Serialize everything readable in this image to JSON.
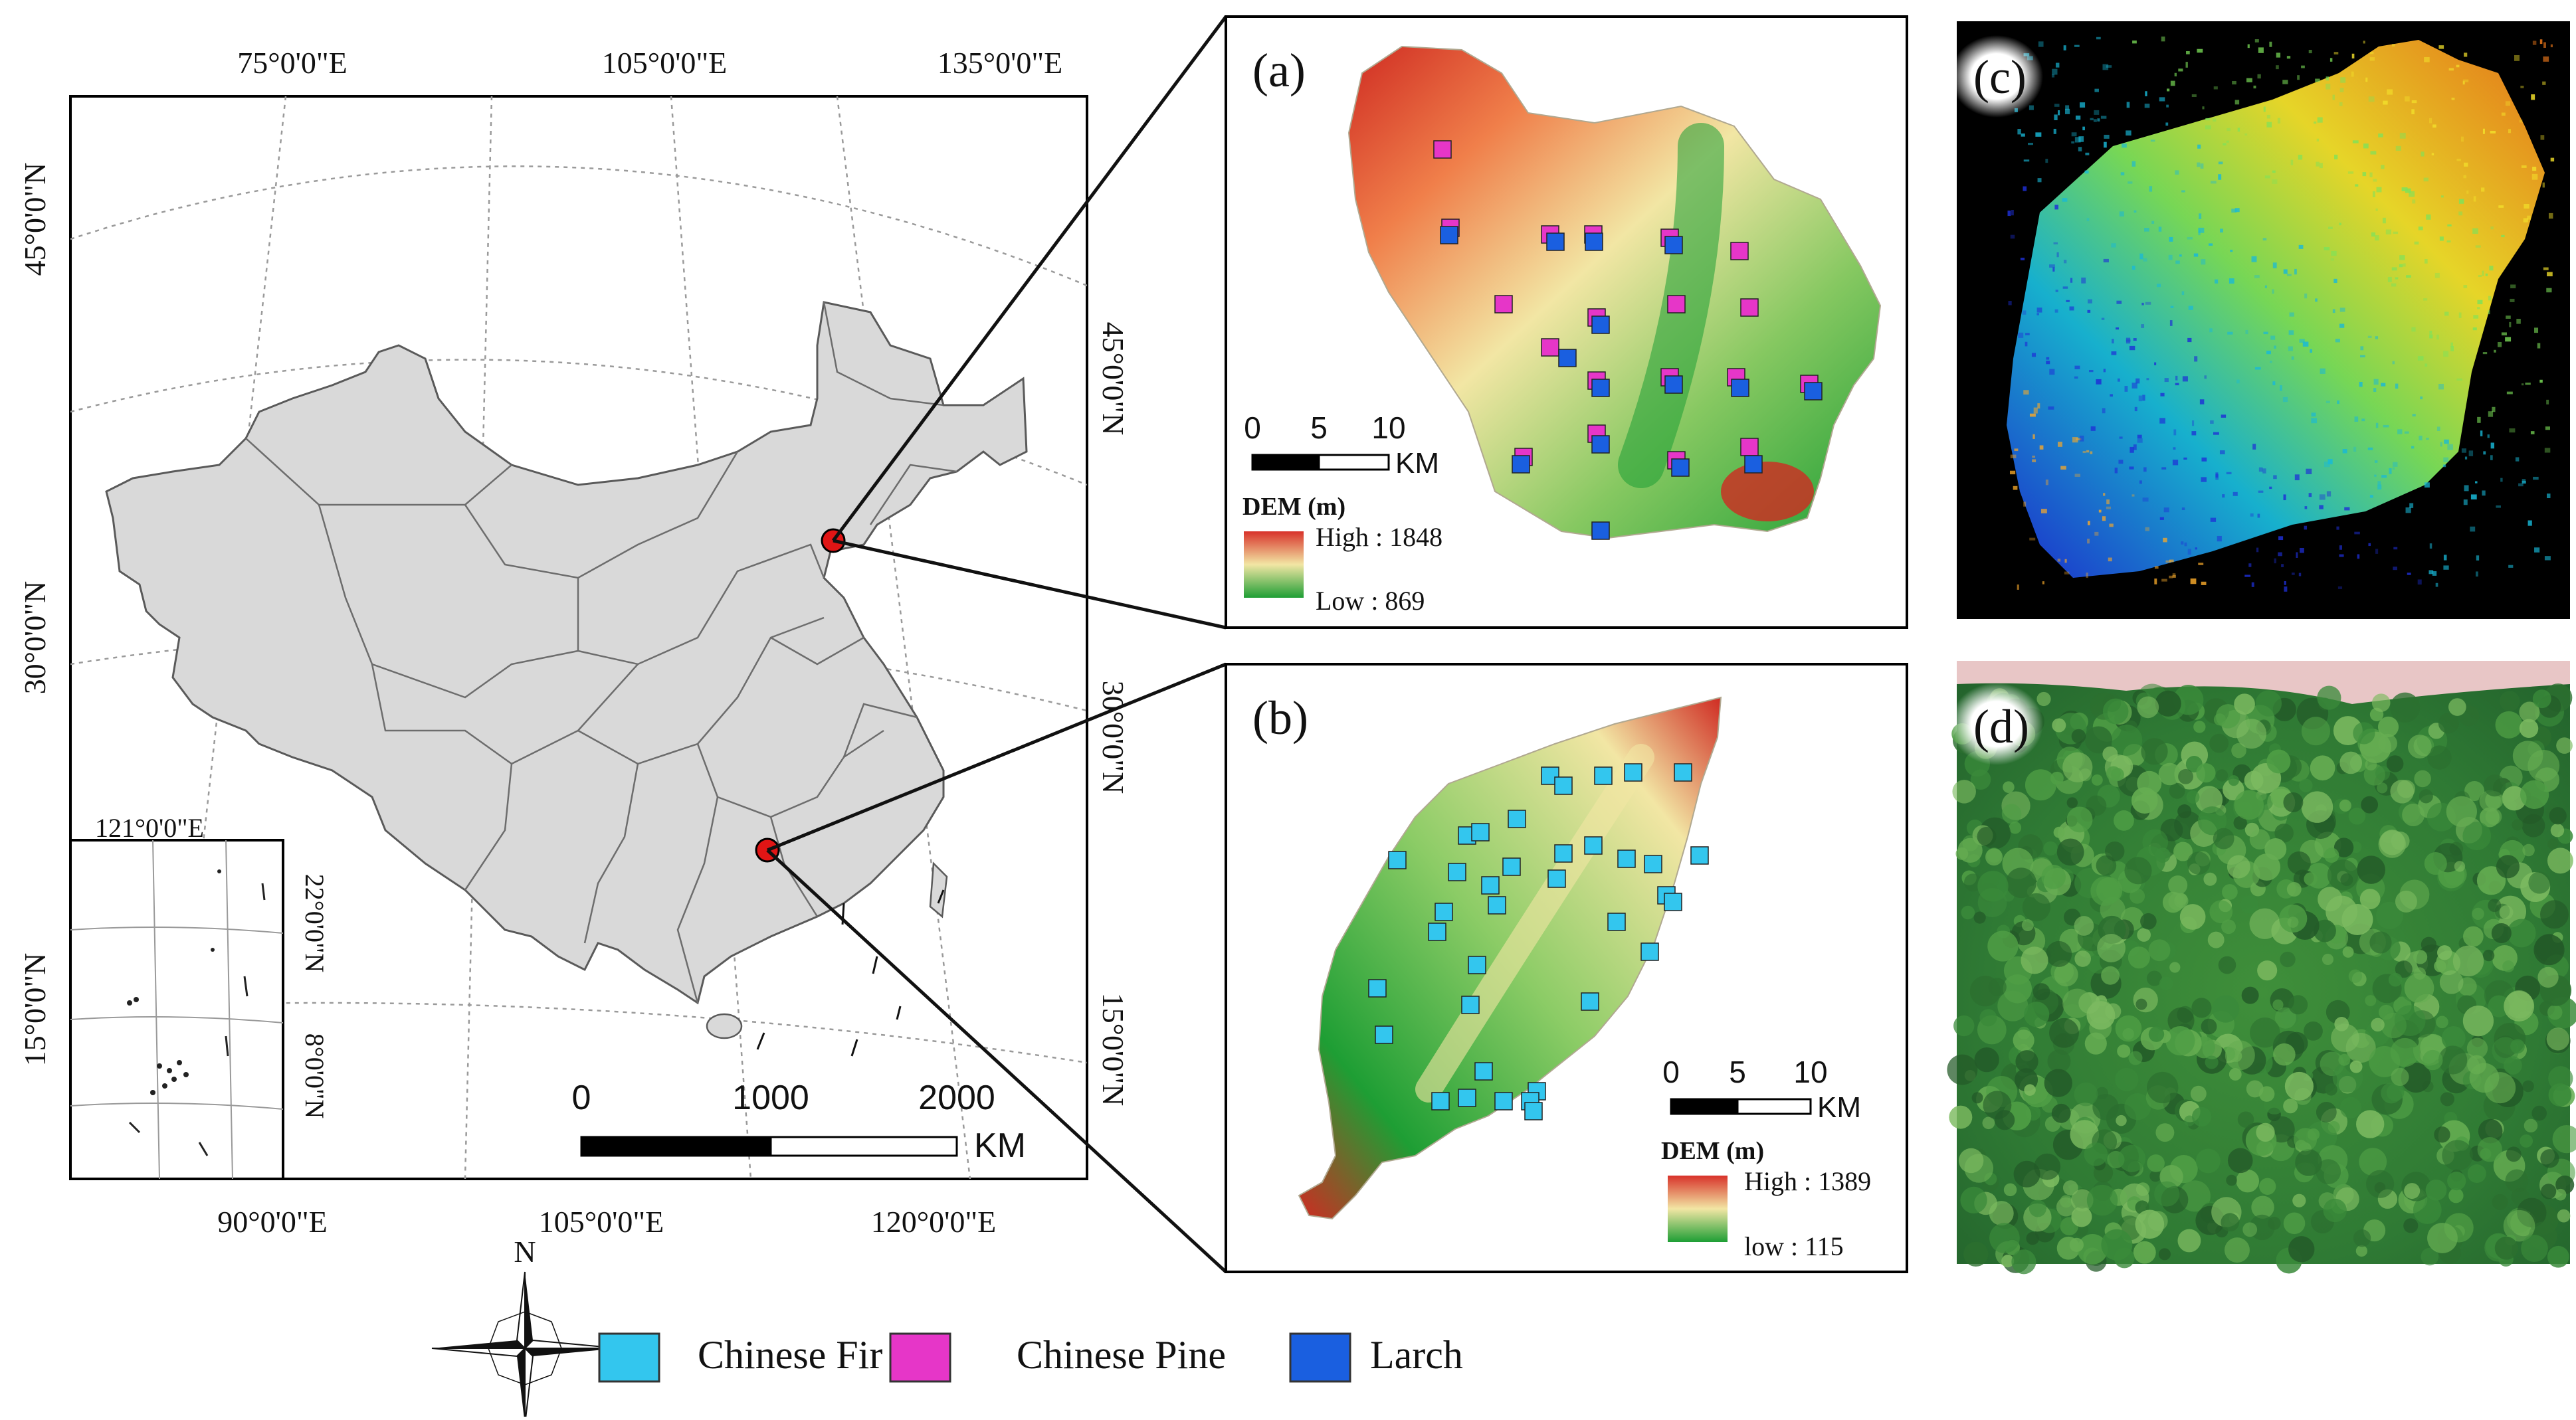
{
  "colors": {
    "fir": "#33c6ee",
    "pine": "#e636c8",
    "larch": "#1a5fe0",
    "china_fill": "#d9d9d9",
    "site_marker": "#e01515",
    "dem_high": "#d8322a",
    "dem_mid": "#f2e6a4",
    "dem_low": "#1e9e34"
  },
  "main_map": {
    "lon_labels_top": [
      "75°0'0\"E",
      "105°0'0\"E",
      "135°0'0\"E"
    ],
    "lon_labels_bottom": [
      "90°0'0\"E",
      "105°0'0\"E",
      "120°0'0\"E"
    ],
    "lat_labels_left": [
      "45°0'0\"N",
      "30°0'0\"N",
      "15°0'0\"N"
    ],
    "lat_labels_right": [
      "45°0'0\"N",
      "30°0'0\"N",
      "15°0'0\"N"
    ],
    "inset": {
      "lon_label": "121°0'0\"E",
      "lat_labels": [
        "22°0'0\"N",
        "8°0'0\"N"
      ]
    },
    "scalebar": {
      "ticks": [
        "0",
        "1000",
        "2000"
      ],
      "unit": "KM"
    }
  },
  "panels": [
    {
      "label": "(a)",
      "dem_title": "DEM (m)",
      "dem_high": "High : 1848",
      "dem_low": "Low : 869",
      "scalebar": {
        "ticks": [
          "0",
          "5",
          "10"
        ],
        "unit": "KM"
      }
    },
    {
      "label": "(b)",
      "dem_title": "DEM (m)",
      "dem_high": "High : 1389",
      "dem_low": "low : 115",
      "scalebar": {
        "ticks": [
          "0",
          "5",
          "10"
        ],
        "unit": "KM"
      }
    },
    {
      "label": "(c)"
    },
    {
      "label": "(d)"
    }
  ],
  "legend": {
    "north_label": "N",
    "items": [
      {
        "label": "Chinese Fir",
        "color": "#33c6ee"
      },
      {
        "label": "Chinese Pine",
        "color": "#e636c8"
      },
      {
        "label": "Larch",
        "color": "#1a5fe0"
      }
    ]
  }
}
